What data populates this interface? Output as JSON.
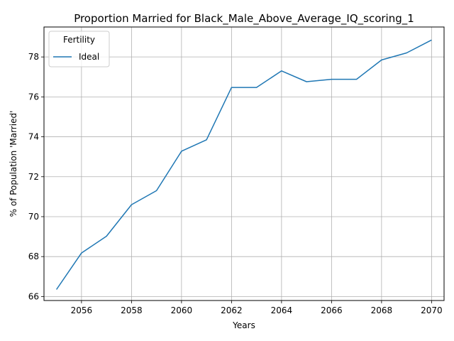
{
  "chart_data": {
    "type": "line",
    "title": "Proportion Married for Black_Male_Above_Average_IQ_scoring_1",
    "xlabel": "Years",
    "ylabel": "% of Population 'Married'",
    "xlim": [
      2054.5,
      2070.5
    ],
    "ylim": [
      65.8,
      79.5
    ],
    "xticks": [
      2056,
      2058,
      2060,
      2062,
      2064,
      2066,
      2068,
      2070
    ],
    "yticks": [
      66,
      68,
      70,
      72,
      74,
      76,
      78
    ],
    "grid": true,
    "legend": {
      "title": "Fertility",
      "placement": "upper-left"
    },
    "series": [
      {
        "name": "Ideal",
        "color": "#1f77b4",
        "x": [
          2055,
          2056,
          2057,
          2058,
          2059,
          2060,
          2061,
          2062,
          2063,
          2064,
          2065,
          2066,
          2067,
          2068,
          2069,
          2070
        ],
        "values": [
          66.35,
          68.18,
          69.02,
          70.6,
          71.3,
          73.28,
          73.85,
          76.47,
          76.47,
          77.3,
          76.76,
          76.88,
          76.88,
          77.85,
          78.2,
          78.85
        ]
      }
    ]
  }
}
